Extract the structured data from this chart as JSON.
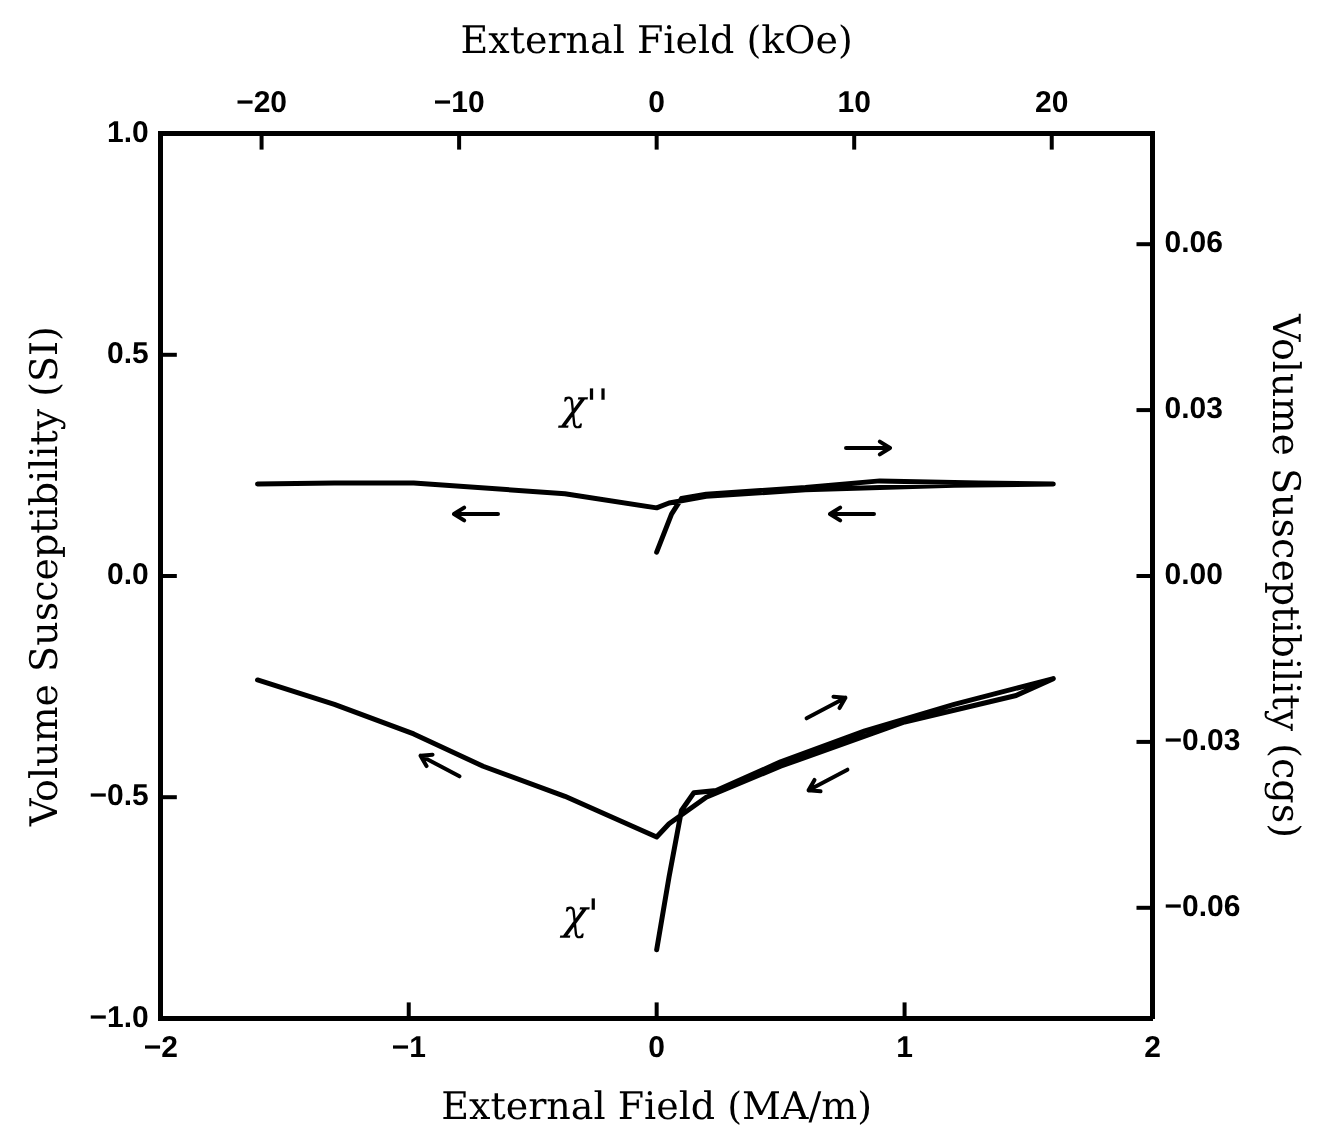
{
  "chart_data": {
    "type": "line",
    "xlabel": "External Field (MA/m)",
    "x2label": "External Field (kOe)",
    "ylabel": "Volume Susceptibility (SI)",
    "y2label": "Volume Susceptibility (cgs)",
    "xlim": [
      -2,
      2
    ],
    "xticks": [
      {
        "value": -2,
        "label": "−2"
      },
      {
        "value": -1,
        "label": "−1"
      },
      0,
      1,
      2
    ],
    "x2lim": [
      -25.1,
      25.1
    ],
    "x2ticks": [
      {
        "value": -20,
        "label": "−20"
      },
      {
        "value": -10,
        "label": "−10"
      },
      0,
      10,
      20
    ],
    "ylim": [
      -1,
      1
    ],
    "yticks": [
      {
        "value": -1,
        "label": "−1.0"
      },
      {
        "value": -0.5,
        "label": "−0.5"
      },
      {
        "value": 0,
        "label": "0.0"
      },
      0.5,
      {
        "value": 1,
        "label": "1.0"
      }
    ],
    "y2lim": [
      -0.08,
      0.08
    ],
    "y2ticks": [
      {
        "value": -0.06,
        "label": "−0.06"
      },
      {
        "value": -0.03,
        "label": "−0.03"
      },
      {
        "value": 0,
        "label": "0.00"
      },
      0.06,
      0.03
    ],
    "marker": "none",
    "line_style": "solid",
    "series": [
      {
        "name": "χ''",
        "color": "#000000",
        "x": [
          0,
          0.06,
          0.1,
          0.2,
          0.6,
          0.9,
          1.3,
          1.6,
          1.2,
          0.6,
          0.2,
          0.05,
          0,
          -0.37,
          -0.98,
          -1.3,
          -1.61
        ],
        "values": [
          0.054,
          0.14,
          0.175,
          0.185,
          0.2,
          0.215,
          0.21,
          0.208,
          0.205,
          0.195,
          0.18,
          0.165,
          0.154,
          0.186,
          0.21,
          0.21,
          0.208
        ]
      },
      {
        "name": "χ'",
        "color": "#000000",
        "x": [
          0,
          0.05,
          0.1,
          0.15,
          0.24,
          0.5,
          0.84,
          1.2,
          1.6,
          1.45,
          1.0,
          0.5,
          0.2,
          0.05,
          0,
          -0.37,
          -0.7,
          -0.98,
          -1.3,
          -1.61
        ],
        "values": [
          -0.845,
          -0.68,
          -0.53,
          -0.49,
          -0.485,
          -0.42,
          -0.35,
          -0.29,
          -0.232,
          -0.27,
          -0.33,
          -0.43,
          -0.5,
          -0.56,
          -0.59,
          -0.498,
          -0.43,
          -0.357,
          -0.29,
          -0.235
        ]
      }
    ]
  }
}
